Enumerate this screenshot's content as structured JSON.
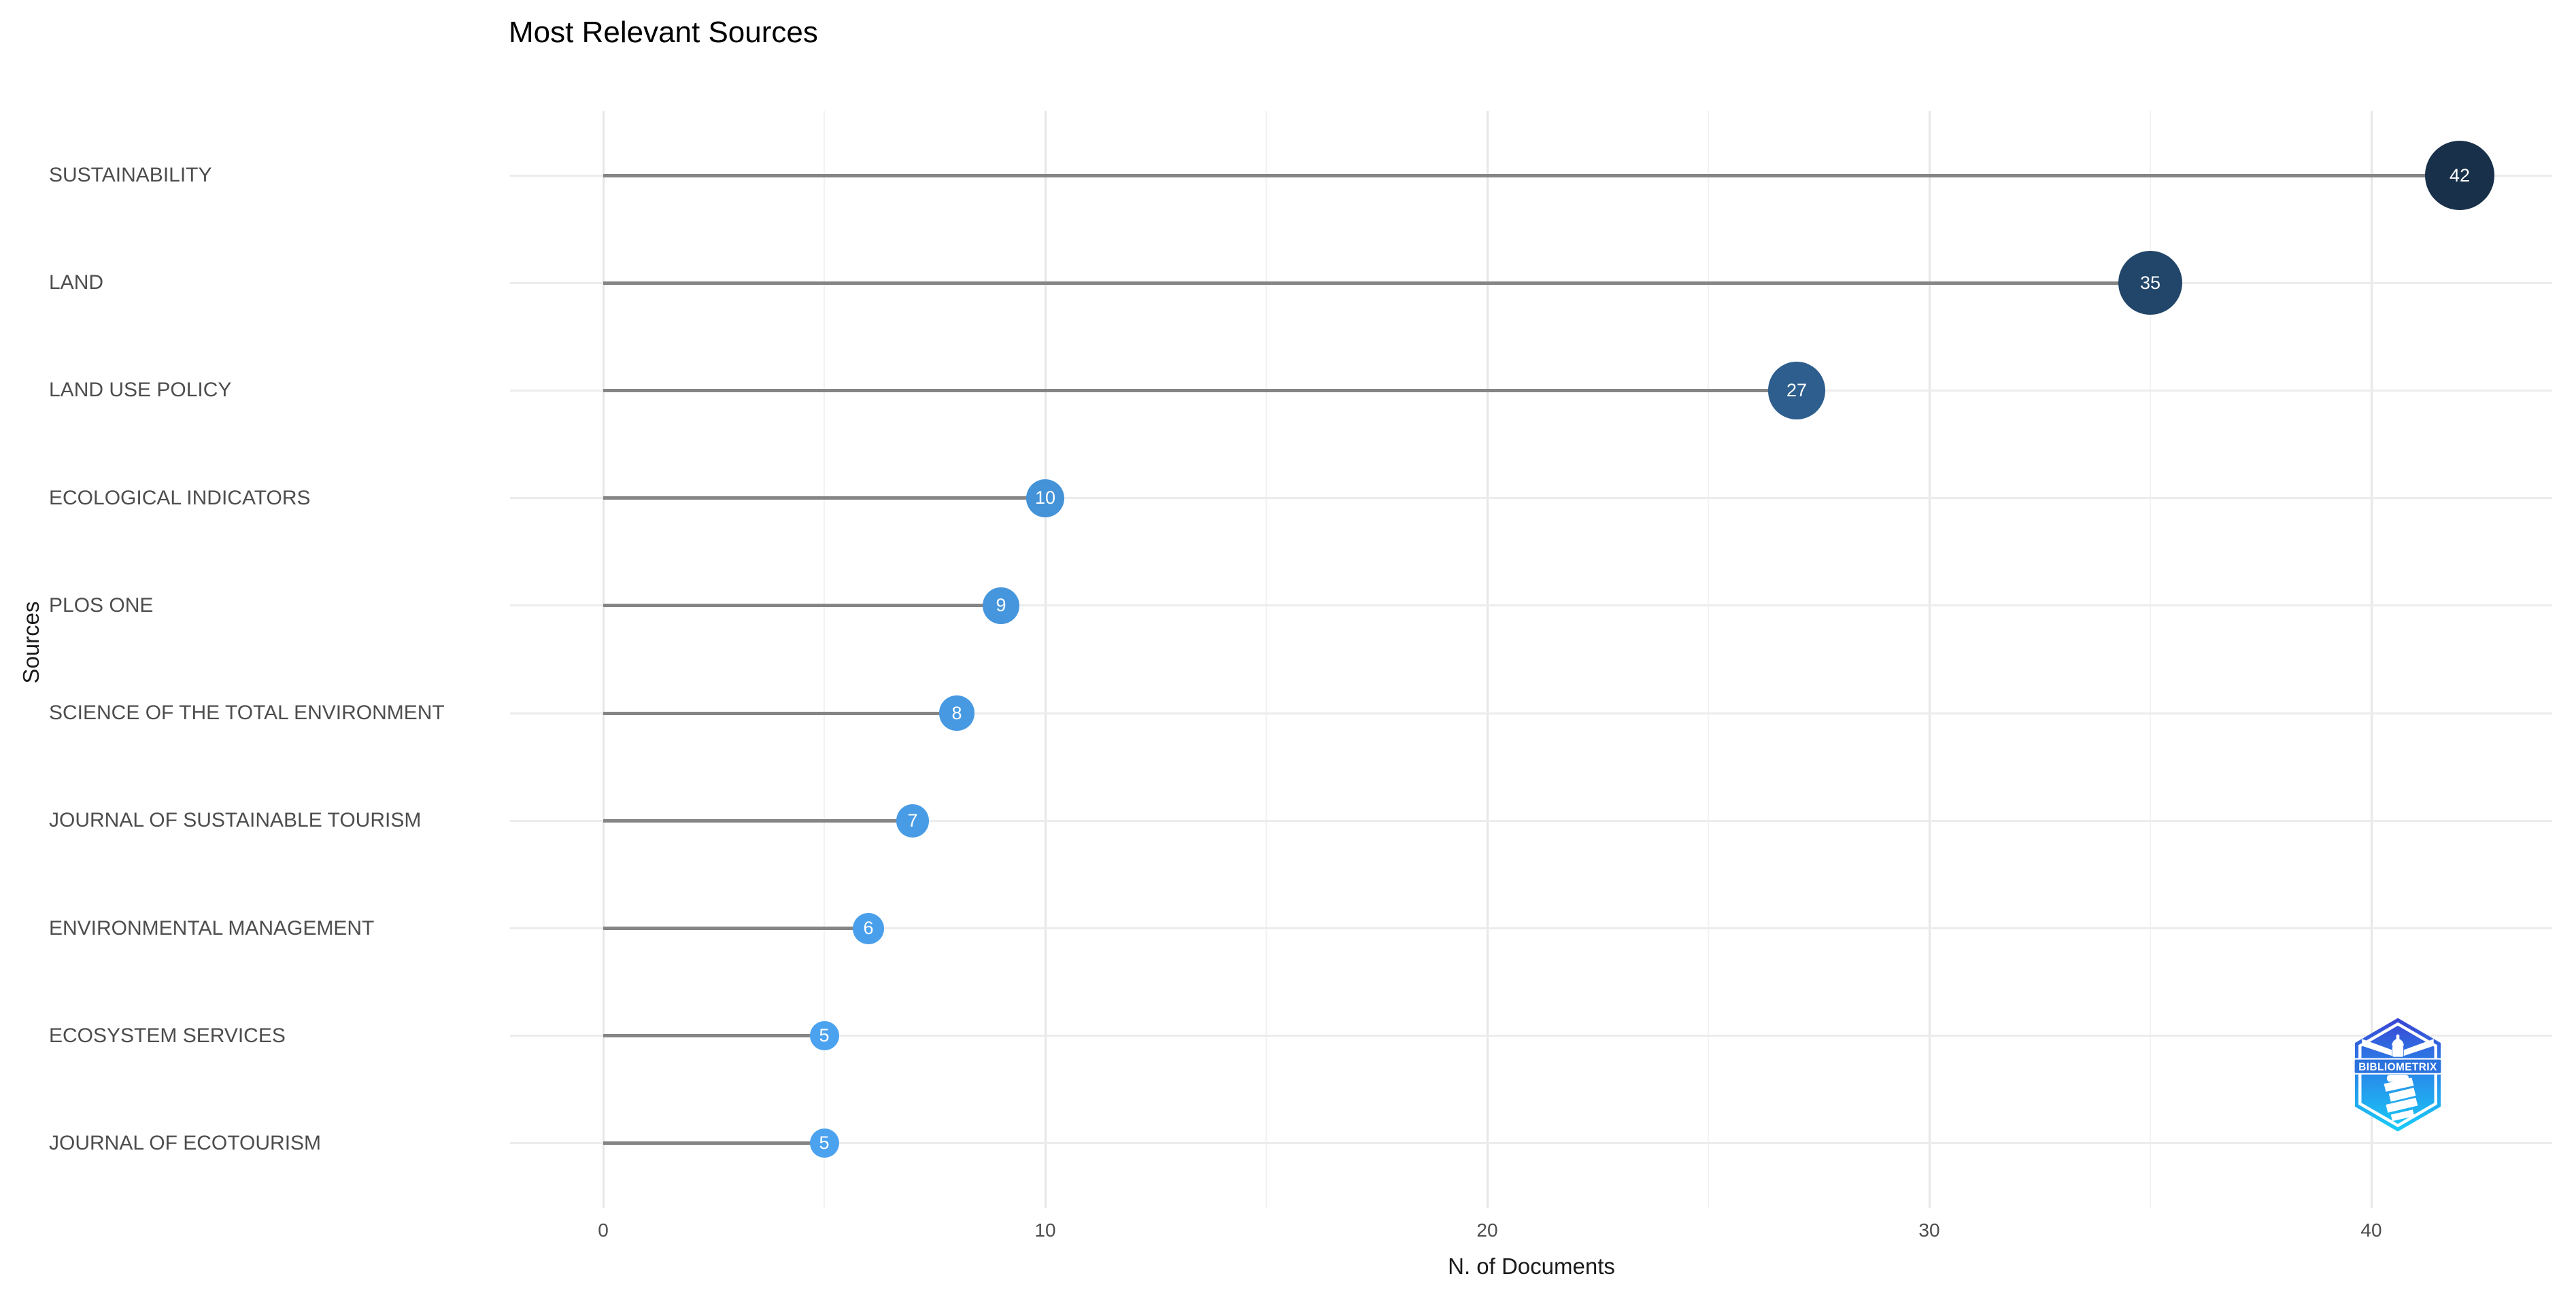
{
  "header": {
    "title": "Most Relevant Sources"
  },
  "axes": {
    "x": {
      "title": "N. of Documents",
      "tick_labels": [
        "0",
        "10",
        "20",
        "30",
        "40"
      ]
    },
    "y": {
      "title": "Sources"
    }
  },
  "watermark": {
    "label": "BIBLIOMETRIX"
  },
  "chart_data": {
    "type": "scatter",
    "variant": "lollipop",
    "orientation": "horizontal",
    "title": "Most Relevant Sources",
    "xlabel": "N. of Documents",
    "ylabel": "Sources",
    "categories": [
      "SUSTAINABILITY",
      "LAND",
      "LAND USE POLICY",
      "ECOLOGICAL INDICATORS",
      "PLOS ONE",
      "SCIENCE OF THE TOTAL ENVIRONMENT",
      "JOURNAL OF SUSTAINABLE TOURISM",
      "ENVIRONMENTAL MANAGEMENT",
      "ECOSYSTEM SERVICES",
      "JOURNAL OF ECOTOURISM"
    ],
    "values": [
      42,
      35,
      27,
      10,
      9,
      8,
      7,
      6,
      5,
      5
    ],
    "xlim": [
      -2.1,
      44.1
    ],
    "x_major_ticks": [
      0,
      10,
      20,
      30,
      40
    ],
    "x_minor_ticks": [
      5,
      15,
      25,
      35
    ],
    "grid": true,
    "legend": "none",
    "point_labels_inside_points": true,
    "style": {
      "point_color_low": "#4ba2ef",
      "point_color_high": "#19304a",
      "color_domain": [
        5,
        42
      ],
      "point_radius_px": [
        21.5,
        51
      ],
      "stem_color": "#858585",
      "grid_major_color": "#e7e7e7",
      "grid_minor_color": "#f2f2f2",
      "grid_row_color": "#ececec",
      "axis_text_color": "#4d4d4d",
      "axis_title_color": "#1a1a1a",
      "title_color": "#000000",
      "point_label_color": "#ffffff",
      "logo_gradient_top": "#3a45d4",
      "logo_gradient_mid": "#2a84e8",
      "logo_gradient_bottom": "#18cdf7"
    }
  }
}
